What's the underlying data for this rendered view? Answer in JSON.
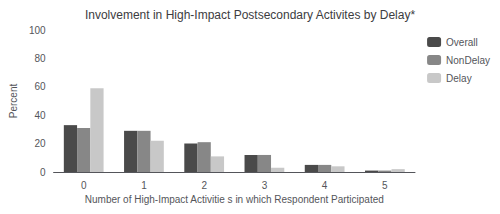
{
  "chart_data": {
    "type": "bar",
    "title": "Involvement in High-Impact Postsecondary Activites by Delay*",
    "xlabel": "Number of High-Impact Activitie s in which Respondent Participated",
    "ylabel": "Percent",
    "categories": [
      0,
      1,
      2,
      3,
      4,
      5
    ],
    "series": [
      {
        "name": "Overall",
        "color": "#4a4a4a",
        "values": [
          33,
          29,
          20,
          12,
          5,
          1
        ]
      },
      {
        "name": "NonDelay",
        "color": "#878787",
        "values": [
          31,
          29,
          21,
          12,
          5,
          1
        ]
      },
      {
        "name": "Delay",
        "color": "#c8c8c8",
        "values": [
          59,
          22,
          11,
          3,
          4,
          2
        ]
      }
    ],
    "ylim": [
      0,
      100
    ],
    "yticks": [
      0,
      20,
      40,
      60,
      80,
      100
    ],
    "grid": false,
    "legend": "upper right"
  }
}
